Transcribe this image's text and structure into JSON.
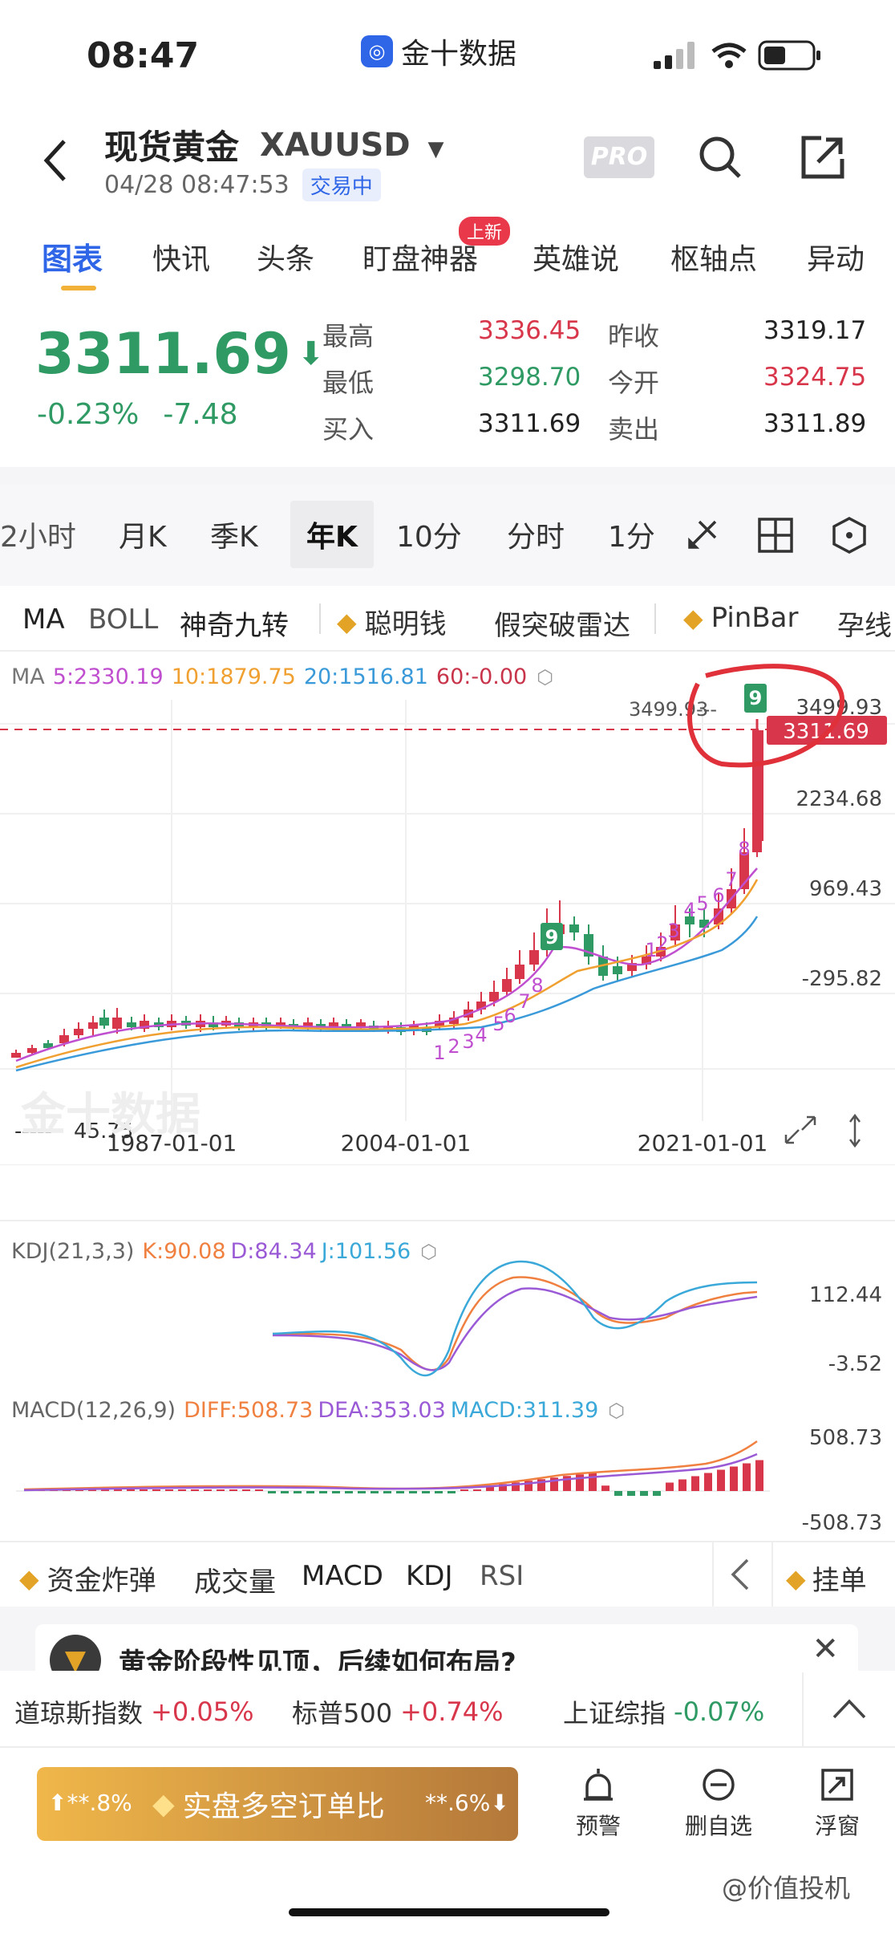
{
  "status_bar": {
    "time": "08:47",
    "app_name": "金十数据"
  },
  "header": {
    "title": "现货黄金",
    "symbol": "XAUUSD",
    "datetime": "04/28 08:47:53",
    "status_badge": "交易中",
    "pro_label": "PRO"
  },
  "tabs": [
    {
      "label": "图表"
    },
    {
      "label": "快讯"
    },
    {
      "label": "头条"
    },
    {
      "label": "盯盘神器",
      "badge": "上新"
    },
    {
      "label": "英雄说"
    },
    {
      "label": "枢轴点"
    },
    {
      "label": "异动"
    }
  ],
  "quote": {
    "price": "3311.69",
    "change_pct": "-0.23%",
    "change": "-7.48",
    "stats": [
      {
        "label": "最高",
        "value": "3336.45",
        "color": "#d8364a"
      },
      {
        "label": "昨收",
        "value": "3319.17",
        "color": "#222222"
      },
      {
        "label": "最低",
        "value": "3298.70",
        "color": "#2f9a63"
      },
      {
        "label": "今开",
        "value": "3324.75",
        "color": "#d8364a"
      },
      {
        "label": "买入",
        "value": "3311.69",
        "color": "#222222"
      },
      {
        "label": "卖出",
        "value": "3311.89",
        "color": "#222222"
      }
    ]
  },
  "periods": [
    "2小时",
    "月K",
    "季K",
    "年K",
    "10分",
    "分时",
    "1分"
  ],
  "indicators": [
    "MA",
    "BOLL",
    "神奇九转",
    "聪明钱",
    "假突破雷达",
    "PinBar",
    "孕线"
  ],
  "ma_legend": {
    "prefix": "MA",
    "items": [
      {
        "text": "5:2330.19",
        "color": "#c04fd0"
      },
      {
        "text": "10:1879.75",
        "color": "#f0a030"
      },
      {
        "text": "20:1516.81",
        "color": "#3a9ad9"
      },
      {
        "text": "60:-0.00",
        "color": "#c8344a"
      }
    ]
  },
  "chart_data": {
    "type": "candlestick",
    "price_axis": [
      "3499.93",
      "2234.68",
      "969.43",
      "-295.82"
    ],
    "current_price_label": "3311.69",
    "max_label": "3499.93",
    "min_label": "45.75",
    "x_ticks": [
      "1987-01-01",
      "2004-01-01",
      "2021-01-01"
    ],
    "nine_label": "9",
    "seq_labels": [
      "1",
      "2",
      "3",
      "4",
      "5",
      "6",
      "7",
      "8",
      "9",
      "1",
      "2",
      "3",
      "4",
      "5",
      "6",
      "7",
      "8"
    ],
    "watermark": "金十数据"
  },
  "kdj": {
    "title": "KDJ(21,3,3)",
    "k": "K:90.08",
    "d": "D:84.34",
    "j": "J:101.56",
    "axis": [
      "112.44",
      "-3.52"
    ]
  },
  "macd": {
    "title": "MACD(12,26,9)",
    "diff": "DIFF:508.73",
    "dea": "DEA:353.03",
    "macd": "MACD:311.39",
    "axis": [
      "508.73",
      "-508.73"
    ]
  },
  "bottom_tools": [
    "资金炸弹",
    "成交量",
    "MACD",
    "KDJ",
    "RSI"
  ],
  "bottom_tools_right": "挂单",
  "news_banner": "黄金阶段性见顶，后续如何布局?",
  "indices": [
    {
      "name": "道琼斯指数",
      "value": "+0.05%",
      "color": "#d8364a"
    },
    {
      "name": "标普500",
      "value": "+0.74%",
      "color": "#d8364a"
    },
    {
      "name": "上证综指",
      "value": "-0.07%",
      "color": "#2f9a63"
    }
  ],
  "action_bar": {
    "left_pct": "**.8%",
    "center": "实盘多空订单比",
    "right_pct": "**.6%",
    "buttons": [
      {
        "label": "预警"
      },
      {
        "label": "删自选"
      },
      {
        "label": "浮窗"
      }
    ]
  },
  "watermark_footer": "@价值投机"
}
